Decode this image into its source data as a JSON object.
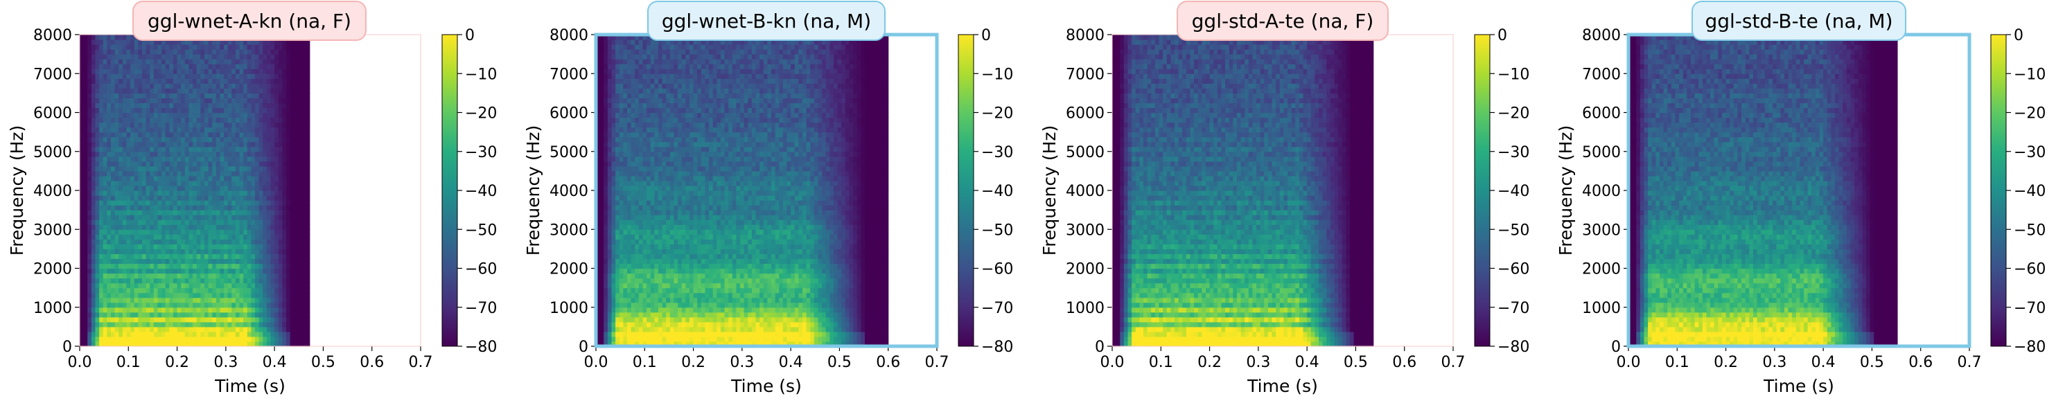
{
  "figure": {
    "colorbar": {
      "ticks": [
        0,
        -10,
        -20,
        -30,
        -40,
        -50,
        -60,
        -70,
        -80
      ],
      "vmin": -80,
      "vmax": 0,
      "colormap": "viridis"
    }
  },
  "chart_data": [
    {
      "type": "heatmap",
      "title": "ggl-wnet-A-kn (na, F)",
      "title_bg": "#fde3e3",
      "title_border": "#f5b5b5",
      "frame_color": "#f8c8c8",
      "frame_width": 1,
      "xlabel": "Time (s)",
      "ylabel": "Frequency (Hz)",
      "xlim": [
        0.0,
        0.7
      ],
      "ylim": [
        0,
        8000
      ],
      "xticks": [
        "0.0",
        "0.1",
        "0.2",
        "0.3",
        "0.4",
        "0.5",
        "0.6",
        "0.7"
      ],
      "yticks": [
        "0",
        "1000",
        "2000",
        "3000",
        "4000",
        "5000",
        "6000",
        "7000",
        "8000"
      ],
      "duration": 0.47,
      "voice": "F"
    },
    {
      "type": "heatmap",
      "title": "ggl-wnet-B-kn (na, M)",
      "title_bg": "#dff1fa",
      "title_border": "#7ec8e6",
      "frame_color": "#7ec8e6",
      "frame_width": 5,
      "xlabel": "Time (s)",
      "ylabel": "Frequency (Hz)",
      "xlim": [
        0.0,
        0.7
      ],
      "ylim": [
        0,
        8000
      ],
      "xticks": [
        "0.0",
        "0.1",
        "0.2",
        "0.3",
        "0.4",
        "0.5",
        "0.6",
        "0.7"
      ],
      "yticks": [
        "0",
        "1000",
        "2000",
        "3000",
        "4000",
        "5000",
        "6000",
        "7000",
        "8000"
      ],
      "duration": 0.6,
      "voice": "M"
    },
    {
      "type": "heatmap",
      "title": "ggl-std-A-te (na, F)",
      "title_bg": "#fde3e3",
      "title_border": "#f5b5b5",
      "frame_color": "#f8c8c8",
      "frame_width": 1,
      "xlabel": "Time (s)",
      "ylabel": "Frequency (Hz)",
      "xlim": [
        0.0,
        0.7
      ],
      "ylim": [
        0,
        8000
      ],
      "xticks": [
        "0.0",
        "0.1",
        "0.2",
        "0.3",
        "0.4",
        "0.5",
        "0.6",
        "0.7"
      ],
      "yticks": [
        "0",
        "1000",
        "2000",
        "3000",
        "4000",
        "5000",
        "6000",
        "7000",
        "8000"
      ],
      "duration": 0.535,
      "voice": "F"
    },
    {
      "type": "heatmap",
      "title": "ggl-std-B-te (na, M)",
      "title_bg": "#dff1fa",
      "title_border": "#7ec8e6",
      "frame_color": "#7ec8e6",
      "frame_width": 5,
      "xlabel": "Time (s)",
      "ylabel": "Frequency (Hz)",
      "xlim": [
        0.0,
        0.7
      ],
      "ylim": [
        0,
        8000
      ],
      "xticks": [
        "0.0",
        "0.1",
        "0.2",
        "0.3",
        "0.4",
        "0.5",
        "0.6",
        "0.7"
      ],
      "yticks": [
        "0",
        "1000",
        "2000",
        "3000",
        "4000",
        "5000",
        "6000",
        "7000",
        "8000"
      ],
      "duration": 0.545,
      "voice": "M"
    }
  ]
}
